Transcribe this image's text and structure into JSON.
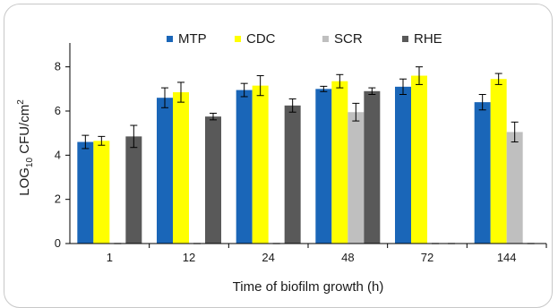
{
  "chart_data": {
    "type": "bar",
    "xlabel": "Time of biofilm growth (h)",
    "ylabel": "LOG10 CFU/cm2",
    "ylabel_parts": {
      "pre": "LOG",
      "sub": "10",
      "mid": " CFU/cm",
      "sup": "2"
    },
    "ylim": [
      0,
      9
    ],
    "yticks": [
      "0",
      "2",
      "4",
      "6",
      "8"
    ],
    "categories": [
      "1",
      "12",
      "24",
      "48",
      "72",
      "144"
    ],
    "legend_position": "top",
    "grid": false,
    "series": [
      {
        "name": "MTP",
        "color": "#1a66b8",
        "values": [
          4.6,
          6.6,
          6.95,
          7.0,
          7.1,
          6.4
        ],
        "errors": [
          0.3,
          0.45,
          0.3,
          0.12,
          0.35,
          0.35
        ]
      },
      {
        "name": "CDC",
        "color": "#ffff00",
        "values": [
          4.65,
          6.85,
          7.15,
          7.35,
          7.6,
          7.45
        ],
        "errors": [
          0.2,
          0.45,
          0.45,
          0.3,
          0.4,
          0.25
        ]
      },
      {
        "name": "SCR",
        "color": "#bfbfbf",
        "values": [
          0,
          0,
          0,
          5.95,
          0,
          5.05
        ],
        "errors": [
          0,
          0,
          0,
          0.4,
          0,
          0.45
        ]
      },
      {
        "name": "RHE",
        "color": "#595959",
        "values": [
          4.85,
          5.75,
          6.25,
          6.9,
          0,
          0
        ],
        "errors": [
          0.5,
          0.15,
          0.3,
          0.15,
          0,
          0
        ]
      }
    ]
  }
}
